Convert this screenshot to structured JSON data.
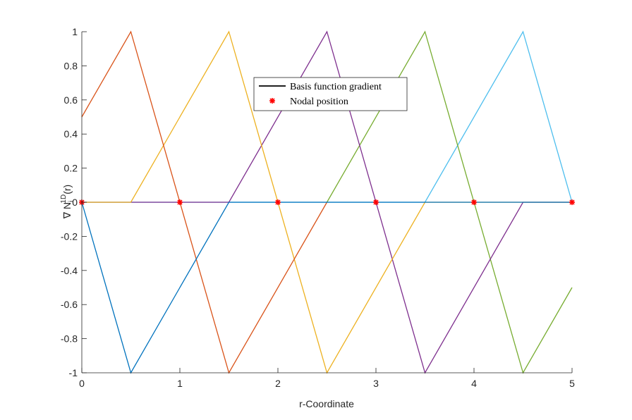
{
  "chart_data": {
    "type": "line",
    "title": "",
    "xlabel": "r-Coordinate",
    "ylabel": {
      "prefix": "∇ N",
      "sub": "i",
      "sup": "1D",
      "suffix": "(r)"
    },
    "xlim": [
      0,
      5
    ],
    "ylim": [
      -1,
      1
    ],
    "xticks": [
      0,
      1,
      2,
      3,
      4,
      5
    ],
    "yticks": [
      -1,
      -0.8,
      -0.6,
      -0.4,
      -0.2,
      0,
      0.2,
      0.4,
      0.6,
      0.8,
      1
    ],
    "xtick_labels": [
      "0",
      "1",
      "2",
      "3",
      "4",
      "5"
    ],
    "ytick_labels": [
      "-1",
      "-0.8",
      "-0.6",
      "-0.4",
      "-0.2",
      "0",
      "0.2",
      "0.4",
      "0.6",
      "0.8",
      "1"
    ],
    "grid": false,
    "legend": {
      "placement": "top-center",
      "entries": [
        {
          "label": "Basis function gradient",
          "marker": "line",
          "color": "#000000"
        },
        {
          "label": "Nodal position",
          "marker": "asterisk",
          "color": "#ff0000"
        }
      ]
    },
    "series": [
      {
        "color": "#0072bd",
        "x": [
          0,
          0.5,
          1.5,
          5
        ],
        "y": [
          0,
          -1,
          0,
          0
        ]
      },
      {
        "color": "#d95319",
        "x": [
          0,
          0.5,
          1.5,
          2.5
        ],
        "y": [
          0.5,
          1,
          -1,
          0
        ]
      },
      {
        "color": "#edb120",
        "x": [
          0,
          0.5,
          1.5,
          2.5,
          3.5,
          5
        ],
        "y": [
          0,
          0,
          1,
          -1,
          0,
          0
        ]
      },
      {
        "color": "#7e2f8e",
        "x": [
          0,
          1.5,
          2.5,
          3.5,
          4.5,
          5
        ],
        "y": [
          0,
          0,
          1,
          -1,
          0,
          0
        ]
      },
      {
        "color": "#77ac30",
        "x": [
          2.5,
          3.5,
          4.5,
          5
        ],
        "y": [
          0,
          1,
          -1,
          -0.5
        ]
      },
      {
        "color": "#4dbeee",
        "x": [
          0,
          3.5,
          4.5,
          5
        ],
        "y": [
          0,
          0,
          1,
          0
        ]
      }
    ],
    "nodes": {
      "x": [
        0,
        1,
        2,
        3,
        4,
        5
      ],
      "y": [
        0,
        0,
        0,
        0,
        0,
        0
      ],
      "color": "#ff0000"
    }
  }
}
